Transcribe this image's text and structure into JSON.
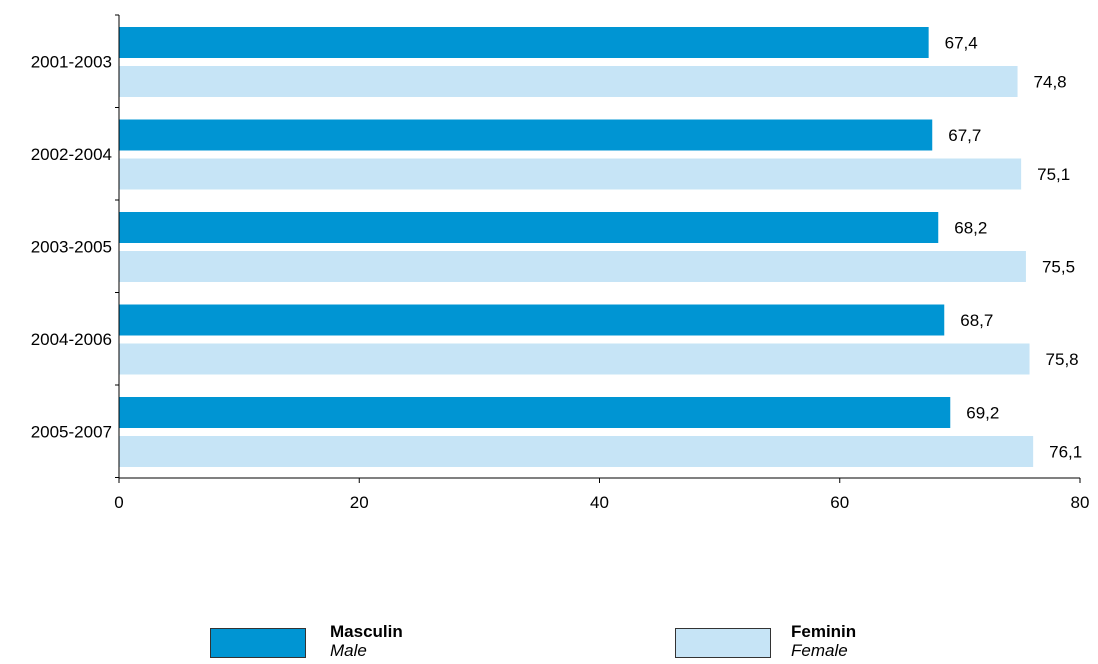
{
  "chart_data": {
    "type": "bar",
    "orientation": "horizontal",
    "categories": [
      "2001-2003",
      "2002-2004",
      "2003-2005",
      "2004-2006",
      "2005-2007"
    ],
    "series": [
      {
        "name": "Masculin",
        "name_en": "Male",
        "color": "#0095d3",
        "values": [
          67.4,
          67.7,
          68.2,
          68.7,
          69.2
        ]
      },
      {
        "name": "Feminin",
        "name_en": "Female",
        "color": "#c6e4f6",
        "values": [
          74.8,
          75.1,
          75.5,
          75.8,
          76.1
        ]
      }
    ],
    "value_labels": [
      [
        "67,4",
        "67,7",
        "68,2",
        "68,7",
        "69,2"
      ],
      [
        "74,8",
        "75,1",
        "75,5",
        "75,8",
        "76,1"
      ]
    ],
    "xlim": [
      0,
      80
    ],
    "xticks": [
      0,
      20,
      40,
      60,
      80
    ],
    "grid": false,
    "legend_position": "bottom"
  }
}
